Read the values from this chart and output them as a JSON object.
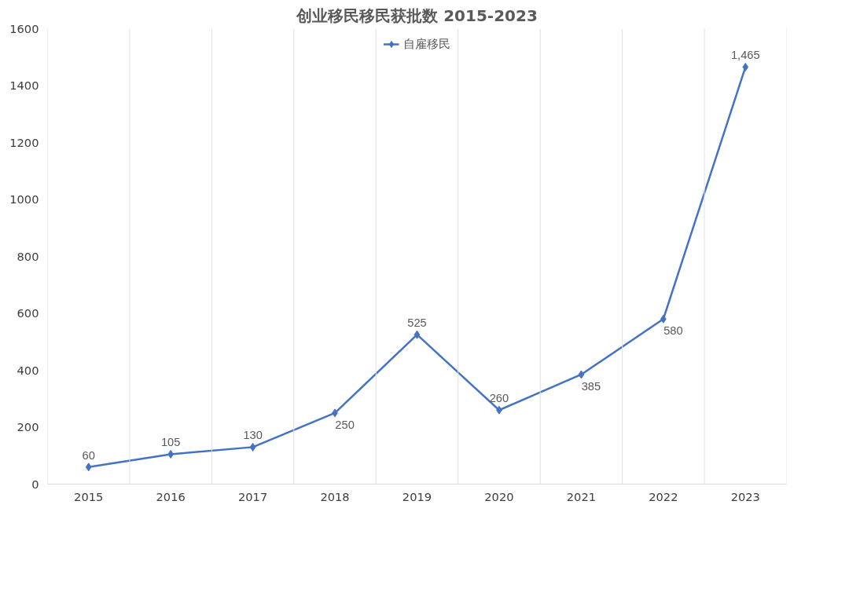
{
  "chart_data": {
    "type": "line",
    "title": "创业移民移民获批数 2015-2023",
    "categories": [
      "2015",
      "2016",
      "2017",
      "2018",
      "2019",
      "2020",
      "2021",
      "2022",
      "2023"
    ],
    "series": [
      {
        "name": "自雇移民",
        "color": "#4472c4",
        "values": [
          60,
          105,
          130,
          250,
          525,
          260,
          385,
          580,
          1465
        ],
        "value_labels": [
          "60",
          "105",
          "130",
          "250",
          "525",
          "260",
          "385",
          "580",
          "1,465"
        ]
      }
    ],
    "ylim": [
      0,
      1600
    ],
    "yticks": [
      0,
      200,
      400,
      600,
      800,
      1000,
      1200,
      1400,
      1600
    ],
    "grid": "x",
    "legend": "top",
    "marker": "diamond",
    "line_style": "solid"
  }
}
